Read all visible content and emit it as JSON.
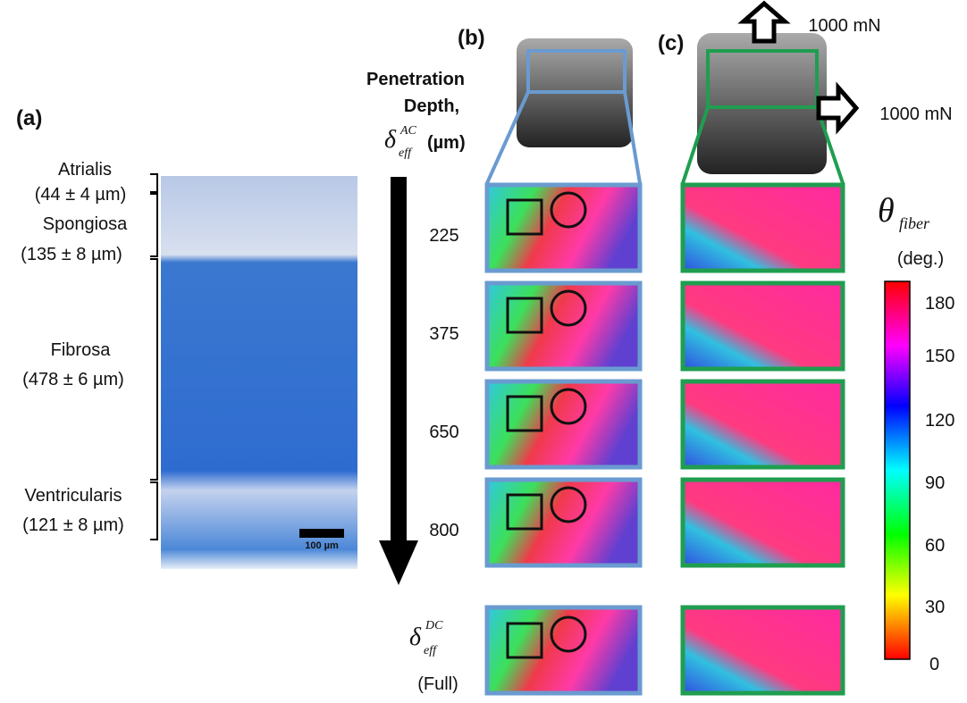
{
  "panel_a": {
    "label": "(a)",
    "layers": [
      {
        "name": "Atrialis",
        "thickness": "(44 ± 4 µm)"
      },
      {
        "name": "Spongiosa",
        "thickness": "(135 ± 8 µm)"
      },
      {
        "name": "Fibrosa",
        "thickness": "(478 ± 6 µm)"
      },
      {
        "name": "Ventricularis",
        "thickness": "(121 ± 8 µm)"
      }
    ],
    "scale_bar": "100 µm"
  },
  "depth_axis": {
    "title_line1": "Penetration",
    "title_line2": "Depth,",
    "symbol": "δ",
    "subscript": "eff",
    "superscript": "AC",
    "unit": "(µm)",
    "depths": [
      "225",
      "375",
      "650",
      "800"
    ],
    "full": {
      "symbol": "δ",
      "subscript": "eff",
      "superscript": "DC",
      "label": "(Full)"
    }
  },
  "panel_b": {
    "label": "(b)"
  },
  "panel_c": {
    "label": "(c)",
    "load_vertical": "1000 mN",
    "load_horizontal": "1000 mN"
  },
  "colorbar": {
    "symbol": "θ",
    "subscript": "fiber",
    "unit": "(deg.)",
    "ticks": [
      "180",
      "150",
      "120",
      "90",
      "60",
      "30",
      "0"
    ]
  }
}
